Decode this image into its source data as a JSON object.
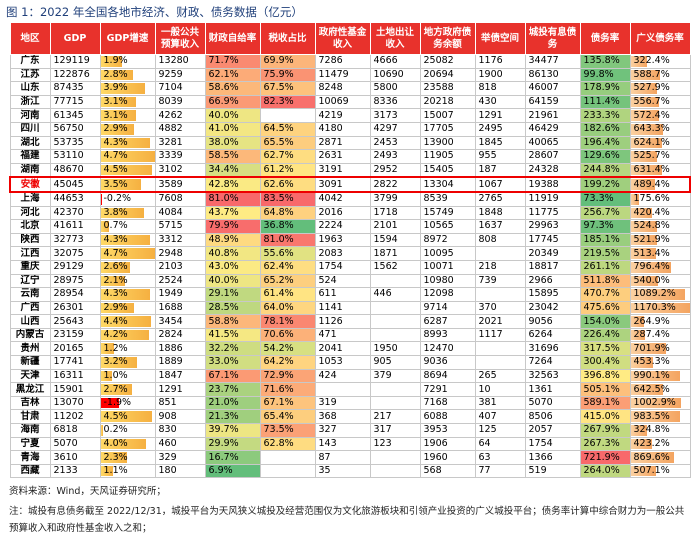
{
  "title": "图 1：2022 年全国各地市经济、财政、债务数据（亿元）",
  "table": {
    "header": [
      "地区",
      "GDP",
      "GDP增速",
      "一般公共预算收入",
      "财政自给率",
      "税收占比",
      "政府性基金收入",
      "土地出让收入",
      "地方政府债务余额",
      "举债空间",
      "城投有息债务",
      "债务率",
      "广义债务率"
    ],
    "rows": [
      [
        "广东",
        129119,
        "1.9%",
        13280,
        "71.7%",
        "69.9%",
        7286,
        4666,
        25082,
        1176,
        34477,
        "135.8%",
        "322.4%"
      ],
      [
        "江苏",
        122876,
        "2.8%",
        9259,
        "62.1%",
        "75.9%",
        11479,
        10690,
        20694,
        1900,
        86130,
        "99.8%",
        "588.7%"
      ],
      [
        "山东",
        87435,
        "3.9%",
        7104,
        "58.6%",
        "67.5%",
        8248,
        5800,
        23588,
        818,
        46007,
        "178.9%",
        "527.9%"
      ],
      [
        "浙江",
        77715,
        "3.1%",
        8039,
        "66.9%",
        "82.3%",
        10069,
        8336,
        20218,
        430,
        64159,
        "111.4%",
        "556.7%"
      ],
      [
        "河南",
        61345,
        "3.1%",
        4262,
        "40.0%",
        null,
        4219,
        3173,
        15007,
        1291,
        21961,
        "233.3%",
        "572.4%"
      ],
      [
        "四川",
        56750,
        "2.9%",
        4882,
        "41.0%",
        "64.5%",
        4180,
        4297,
        17705,
        2495,
        46429,
        "182.6%",
        "643.3%"
      ],
      [
        "湖北",
        53735,
        "4.3%",
        3281,
        "38.0%",
        "65.5%",
        2871,
        2453,
        13900,
        1845,
        40065,
        "196.4%",
        "624.1%"
      ],
      [
        "福建",
        53110,
        "4.7%",
        3339,
        "58.5%",
        "62.7%",
        2631,
        2493,
        11905,
        955,
        28607,
        "129.6%",
        "525.7%"
      ],
      [
        "湖南",
        48670,
        "4.5%",
        3102,
        "34.4%",
        "61.2%",
        3191,
        2952,
        15405,
        187,
        24328,
        "244.8%",
        "631.4%"
      ],
      [
        "安徽",
        45045,
        "3.5%",
        3589,
        "42.8%",
        "62.6%",
        3091,
        2822,
        13304,
        1067,
        19388,
        "199.2%",
        "489.4%"
      ],
      [
        "上海",
        44653,
        "-0.2%",
        7608,
        "81.0%",
        "83.5%",
        4042,
        3799,
        8539,
        2765,
        11919,
        "73.3%",
        "175.6%"
      ],
      [
        "河北",
        42370,
        "3.8%",
        4084,
        "43.7%",
        "64.8%",
        2016,
        1718,
        15749,
        1848,
        11775,
        "256.7%",
        "420.4%"
      ],
      [
        "北京",
        41611,
        "0.7%",
        5715,
        "79.9%",
        "36.8%",
        2224,
        2101,
        10565,
        1637,
        29963,
        "97.3%",
        "524.8%"
      ],
      [
        "陕西",
        32773,
        "4.3%",
        3312,
        "48.9%",
        "81.0%",
        1963,
        1594,
        8972,
        808,
        17745,
        "185.1%",
        "521.9%"
      ],
      [
        "江西",
        32075,
        "4.7%",
        2948,
        "40.8%",
        "55.6%",
        2083,
        1871,
        10095,
        null,
        20349,
        "219.5%",
        "513.4%"
      ],
      [
        "重庆",
        29129,
        "2.6%",
        2103,
        "43.0%",
        "62.4%",
        1754,
        1562,
        10071,
        218,
        18817,
        "261.1%",
        "796.4%"
      ],
      [
        "辽宁",
        28975,
        "2.1%",
        2524,
        "40.0%",
        "65.2%",
        524,
        null,
        10980,
        739,
        2966,
        "511.8%",
        "540.0%"
      ],
      [
        "云南",
        28954,
        "4.3%",
        1949,
        "29.1%",
        "61.4%",
        611,
        446,
        12098,
        null,
        15895,
        "470.7%",
        "1089.2%"
      ],
      [
        "广西",
        26301,
        "2.9%",
        1688,
        "28.5%",
        "64.0%",
        1141,
        null,
        9714,
        370,
        23042,
        "475.6%",
        "1170.3%"
      ],
      [
        "山西",
        25643,
        "4.4%",
        3454,
        "58.8%",
        "78.1%",
        1126,
        null,
        6287,
        2021,
        9056,
        "154.0%",
        "264.9%"
      ],
      [
        "内蒙古",
        23159,
        "4.2%",
        2824,
        "41.5%",
        "70.6%",
        471,
        null,
        8993,
        1117,
        6264,
        "226.4%",
        "287.4%"
      ],
      [
        "贵州",
        20165,
        "1.2%",
        1886,
        "32.2%",
        "54.2%",
        2041,
        1950,
        12470,
        null,
        31696,
        "317.5%",
        "701.9%"
      ],
      [
        "新疆",
        17741,
        "3.2%",
        1889,
        "33.0%",
        "64.2%",
        1053,
        905,
        9036,
        null,
        7264,
        "300.4%",
        "453.3%"
      ],
      [
        "天津",
        16311,
        "1.0%",
        1847,
        "67.1%",
        "72.9%",
        424,
        379,
        8694,
        265,
        32563,
        "396.8%",
        "990.1%"
      ],
      [
        "黑龙江",
        15901,
        "2.7%",
        1291,
        "23.7%",
        "71.6%",
        null,
        null,
        7291,
        10,
        1361,
        "505.1%",
        "642.5%"
      ],
      [
        "吉林",
        13070,
        "-1.9%",
        851,
        "21.0%",
        "67.1%",
        319,
        null,
        7168,
        381,
        5070,
        "589.1%",
        "1002.9%"
      ],
      [
        "甘肃",
        11202,
        "4.5%",
        908,
        "21.3%",
        "65.4%",
        368,
        217,
        6088,
        407,
        8506,
        "415.0%",
        "983.5%"
      ],
      [
        "海南",
        6818,
        "0.2%",
        830,
        "39.7%",
        "73.5%",
        327,
        317,
        3953,
        125,
        2057,
        "267.9%",
        "324.8%"
      ],
      [
        "宁夏",
        5070,
        "4.0%",
        460,
        "29.9%",
        "62.8%",
        143,
        123,
        1906,
        64,
        1754,
        "267.3%",
        "423.2%"
      ],
      [
        "青海",
        3610,
        "2.3%",
        329,
        "16.7%",
        null,
        87,
        null,
        1960,
        63,
        1366,
        "721.9%",
        "869.6%"
      ],
      [
        "西藏",
        2133,
        "1.1%",
        180,
        "6.9%",
        null,
        35,
        null,
        568,
        77,
        519,
        "264.0%",
        "507.1%"
      ]
    ]
  },
  "notes": [
    "资料来源：Wind，天风证券研究所；",
    "注：城投有息债务截至 2022/12/31，城投平台为天风狭义城投及经营范围仅为文化旅游板块和引领产业投资的广义城投平台；债务率计算中综合财力为一般公共",
    "预算收入和政府性基金收入之和；"
  ]
}
